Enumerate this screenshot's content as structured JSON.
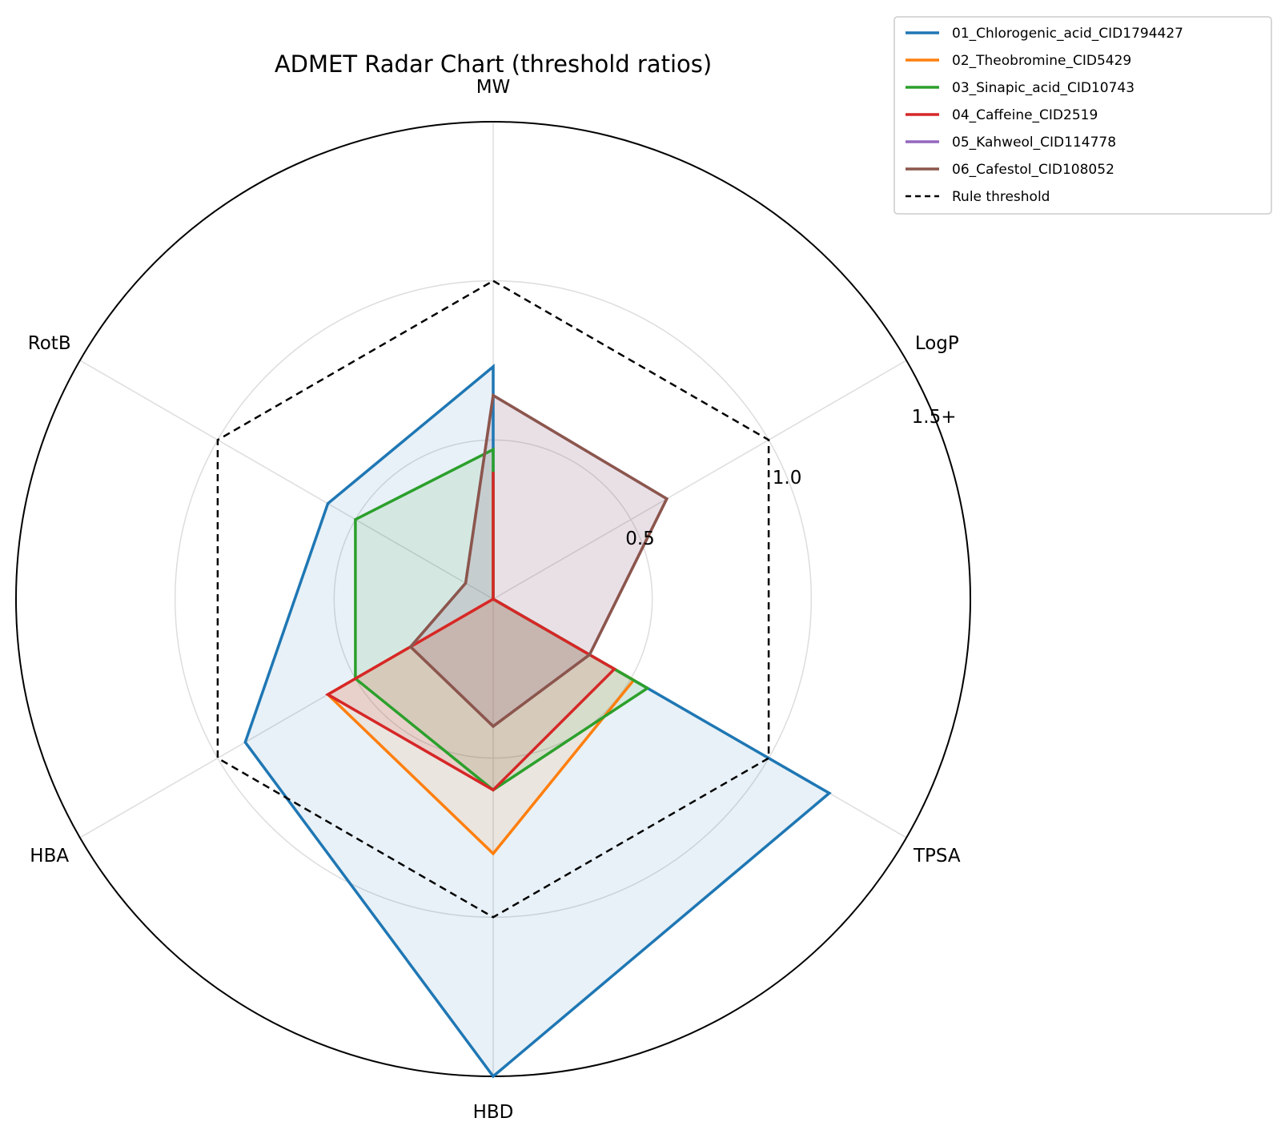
{
  "chart_data": {
    "type": "radar",
    "title": "ADMET Radar Chart (threshold ratios)",
    "axes": [
      "MW",
      "LogP",
      "TPSA",
      "HBD",
      "HBA",
      "RotB"
    ],
    "rlim": [
      0,
      1.5
    ],
    "ring_labels": [
      {
        "value": 0.5,
        "label": "0.5"
      },
      {
        "value": 1.0,
        "label": "1.0"
      },
      {
        "value": 1.5,
        "label": "1.5+"
      }
    ],
    "threshold": {
      "name": "Rule threshold",
      "values": [
        1,
        1,
        1,
        1,
        1,
        1
      ],
      "color": "#000000",
      "style": "dashed"
    },
    "series": [
      {
        "name": "01_Chlorogenic_acid_CID1794427",
        "color": "#1f77b4",
        "values": [
          0.73,
          0.0,
          1.22,
          1.5,
          0.9,
          0.6
        ]
      },
      {
        "name": "02_Theobromine_CID5429",
        "color": "#ff7f0e",
        "values": [
          0.36,
          0.0,
          0.51,
          0.8,
          0.6,
          0.0
        ]
      },
      {
        "name": "03_Sinapic_acid_CID10743",
        "color": "#2ca02c",
        "values": [
          0.47,
          0.0,
          0.56,
          0.6,
          0.5,
          0.5
        ]
      },
      {
        "name": "04_Caffeine_CID2519",
        "color": "#d62728",
        "values": [
          0.4,
          0.0,
          0.44,
          0.6,
          0.6,
          0.0
        ]
      },
      {
        "name": "05_Kahweol_CID114778",
        "color": "#9467bd",
        "values": [
          0.64,
          0.63,
          0.35,
          0.4,
          0.3,
          0.1
        ]
      },
      {
        "name": "06_Cafestol_CID108052",
        "color": "#8c564b",
        "values": [
          0.64,
          0.63,
          0.35,
          0.4,
          0.3,
          0.1
        ]
      }
    ],
    "grid": true,
    "legend": "top-right"
  }
}
